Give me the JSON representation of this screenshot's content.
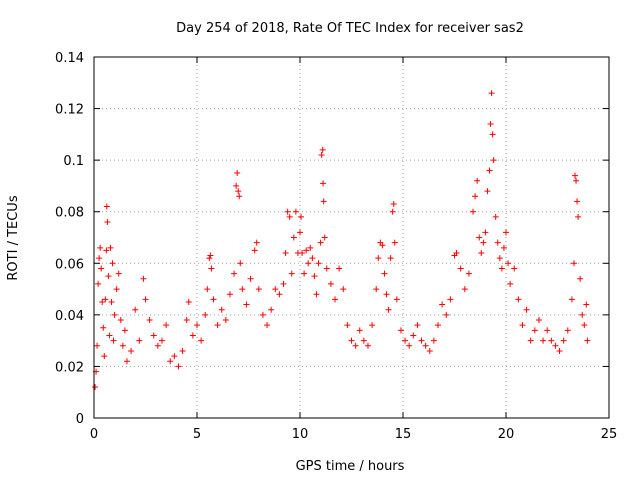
{
  "chart_data": {
    "type": "scatter",
    "title": "Day 254 of 2018, Rate Of TEC Index for receiver sas2",
    "xlabel": "GPS time / hours",
    "ylabel": "ROTI / TECUs",
    "xlim": [
      0,
      25
    ],
    "ylim": [
      0,
      0.14
    ],
    "x_ticks": [
      0,
      5,
      10,
      15,
      20,
      25
    ],
    "x_tick_labels": [
      "0",
      "5",
      "10",
      "15",
      "20",
      "25"
    ],
    "y_ticks": [
      0,
      0.02,
      0.04,
      0.06,
      0.08,
      0.1,
      0.12,
      0.14
    ],
    "y_tick_labels": [
      "0",
      "0.02",
      "0.04",
      "0.06",
      "0.08",
      "0.1",
      "0.12",
      "0.14"
    ],
    "grid": true,
    "marker": "+",
    "color": "#ff0000",
    "series": [
      {
        "name": "ROTI",
        "points": [
          [
            0.05,
            0.012
          ],
          [
            0.1,
            0.018
          ],
          [
            0.15,
            0.028
          ],
          [
            0.2,
            0.052
          ],
          [
            0.25,
            0.062
          ],
          [
            0.3,
            0.066
          ],
          [
            0.35,
            0.058
          ],
          [
            0.4,
            0.045
          ],
          [
            0.45,
            0.035
          ],
          [
            0.5,
            0.024
          ],
          [
            0.55,
            0.046
          ],
          [
            0.6,
            0.065
          ],
          [
            0.62,
            0.082
          ],
          [
            0.65,
            0.076
          ],
          [
            0.7,
            0.055
          ],
          [
            0.75,
            0.032
          ],
          [
            0.8,
            0.066
          ],
          [
            0.85,
            0.045
          ],
          [
            0.9,
            0.06
          ],
          [
            0.95,
            0.03
          ],
          [
            1.0,
            0.04
          ],
          [
            1.1,
            0.05
          ],
          [
            1.2,
            0.056
          ],
          [
            1.3,
            0.038
          ],
          [
            1.4,
            0.028
          ],
          [
            1.5,
            0.034
          ],
          [
            1.6,
            0.022
          ],
          [
            1.8,
            0.026
          ],
          [
            2.0,
            0.042
          ],
          [
            2.2,
            0.03
          ],
          [
            2.4,
            0.054
          ],
          [
            2.5,
            0.046
          ],
          [
            2.7,
            0.038
          ],
          [
            2.9,
            0.032
          ],
          [
            3.1,
            0.028
          ],
          [
            3.3,
            0.03
          ],
          [
            3.5,
            0.036
          ],
          [
            3.7,
            0.022
          ],
          [
            3.9,
            0.024
          ],
          [
            4.1,
            0.02
          ],
          [
            4.3,
            0.026
          ],
          [
            4.5,
            0.038
          ],
          [
            4.6,
            0.045
          ],
          [
            4.8,
            0.032
          ],
          [
            5.0,
            0.036
          ],
          [
            5.2,
            0.03
          ],
          [
            5.4,
            0.04
          ],
          [
            5.5,
            0.05
          ],
          [
            5.6,
            0.062
          ],
          [
            5.65,
            0.063
          ],
          [
            5.7,
            0.058
          ],
          [
            5.8,
            0.046
          ],
          [
            6.0,
            0.036
          ],
          [
            6.2,
            0.042
          ],
          [
            6.4,
            0.038
          ],
          [
            6.6,
            0.048
          ],
          [
            6.8,
            0.056
          ],
          [
            6.9,
            0.09
          ],
          [
            6.95,
            0.095
          ],
          [
            7.0,
            0.088
          ],
          [
            7.05,
            0.086
          ],
          [
            7.1,
            0.06
          ],
          [
            7.2,
            0.05
          ],
          [
            7.4,
            0.044
          ],
          [
            7.6,
            0.054
          ],
          [
            7.8,
            0.065
          ],
          [
            7.9,
            0.068
          ],
          [
            8.0,
            0.05
          ],
          [
            8.2,
            0.04
          ],
          [
            8.4,
            0.036
          ],
          [
            8.6,
            0.042
          ],
          [
            8.8,
            0.05
          ],
          [
            9.0,
            0.048
          ],
          [
            9.2,
            0.052
          ],
          [
            9.3,
            0.064
          ],
          [
            9.4,
            0.08
          ],
          [
            9.5,
            0.078
          ],
          [
            9.6,
            0.056
          ],
          [
            9.7,
            0.07
          ],
          [
            9.8,
            0.08
          ],
          [
            9.9,
            0.064
          ],
          [
            10.0,
            0.072
          ],
          [
            10.05,
            0.078
          ],
          [
            10.1,
            0.064
          ],
          [
            10.2,
            0.056
          ],
          [
            10.3,
            0.065
          ],
          [
            10.4,
            0.06
          ],
          [
            10.5,
            0.066
          ],
          [
            10.6,
            0.062
          ],
          [
            10.7,
            0.055
          ],
          [
            10.8,
            0.048
          ],
          [
            10.9,
            0.06
          ],
          [
            11.0,
            0.068
          ],
          [
            11.05,
            0.102
          ],
          [
            11.1,
            0.104
          ],
          [
            11.12,
            0.091
          ],
          [
            11.15,
            0.084
          ],
          [
            11.2,
            0.07
          ],
          [
            11.3,
            0.058
          ],
          [
            11.5,
            0.052
          ],
          [
            11.7,
            0.046
          ],
          [
            11.9,
            0.058
          ],
          [
            12.1,
            0.05
          ],
          [
            12.3,
            0.036
          ],
          [
            12.5,
            0.03
          ],
          [
            12.7,
            0.028
          ],
          [
            12.9,
            0.034
          ],
          [
            13.1,
            0.03
          ],
          [
            13.3,
            0.028
          ],
          [
            13.5,
            0.036
          ],
          [
            13.7,
            0.05
          ],
          [
            13.8,
            0.062
          ],
          [
            13.9,
            0.068
          ],
          [
            14.0,
            0.067
          ],
          [
            14.1,
            0.056
          ],
          [
            14.2,
            0.048
          ],
          [
            14.3,
            0.042
          ],
          [
            14.4,
            0.062
          ],
          [
            14.5,
            0.08
          ],
          [
            14.55,
            0.083
          ],
          [
            14.6,
            0.068
          ],
          [
            14.7,
            0.046
          ],
          [
            14.9,
            0.034
          ],
          [
            15.1,
            0.03
          ],
          [
            15.3,
            0.028
          ],
          [
            15.5,
            0.032
          ],
          [
            15.7,
            0.036
          ],
          [
            15.9,
            0.03
          ],
          [
            16.1,
            0.028
          ],
          [
            16.3,
            0.026
          ],
          [
            16.5,
            0.03
          ],
          [
            16.7,
            0.036
          ],
          [
            16.9,
            0.044
          ],
          [
            17.1,
            0.04
          ],
          [
            17.3,
            0.046
          ],
          [
            17.5,
            0.063
          ],
          [
            17.6,
            0.064
          ],
          [
            17.8,
            0.058
          ],
          [
            18.0,
            0.05
          ],
          [
            18.2,
            0.056
          ],
          [
            18.4,
            0.08
          ],
          [
            18.5,
            0.086
          ],
          [
            18.6,
            0.092
          ],
          [
            18.7,
            0.07
          ],
          [
            18.8,
            0.064
          ],
          [
            18.9,
            0.068
          ],
          [
            19.0,
            0.072
          ],
          [
            19.1,
            0.088
          ],
          [
            19.2,
            0.096
          ],
          [
            19.25,
            0.114
          ],
          [
            19.3,
            0.126
          ],
          [
            19.35,
            0.11
          ],
          [
            19.4,
            0.1
          ],
          [
            19.5,
            0.078
          ],
          [
            19.6,
            0.068
          ],
          [
            19.7,
            0.062
          ],
          [
            19.8,
            0.058
          ],
          [
            19.9,
            0.066
          ],
          [
            20.0,
            0.072
          ],
          [
            20.1,
            0.06
          ],
          [
            20.2,
            0.052
          ],
          [
            20.4,
            0.058
          ],
          [
            20.6,
            0.046
          ],
          [
            20.8,
            0.036
          ],
          [
            21.0,
            0.042
          ],
          [
            21.2,
            0.03
          ],
          [
            21.4,
            0.034
          ],
          [
            21.6,
            0.038
          ],
          [
            21.8,
            0.03
          ],
          [
            22.0,
            0.034
          ],
          [
            22.2,
            0.03
          ],
          [
            22.4,
            0.028
          ],
          [
            22.6,
            0.026
          ],
          [
            22.8,
            0.03
          ],
          [
            23.0,
            0.034
          ],
          [
            23.2,
            0.046
          ],
          [
            23.3,
            0.06
          ],
          [
            23.35,
            0.094
          ],
          [
            23.4,
            0.092
          ],
          [
            23.45,
            0.084
          ],
          [
            23.5,
            0.078
          ],
          [
            23.6,
            0.054
          ],
          [
            23.7,
            0.04
          ],
          [
            23.8,
            0.036
          ],
          [
            23.9,
            0.044
          ],
          [
            23.95,
            0.03
          ]
        ]
      }
    ]
  }
}
